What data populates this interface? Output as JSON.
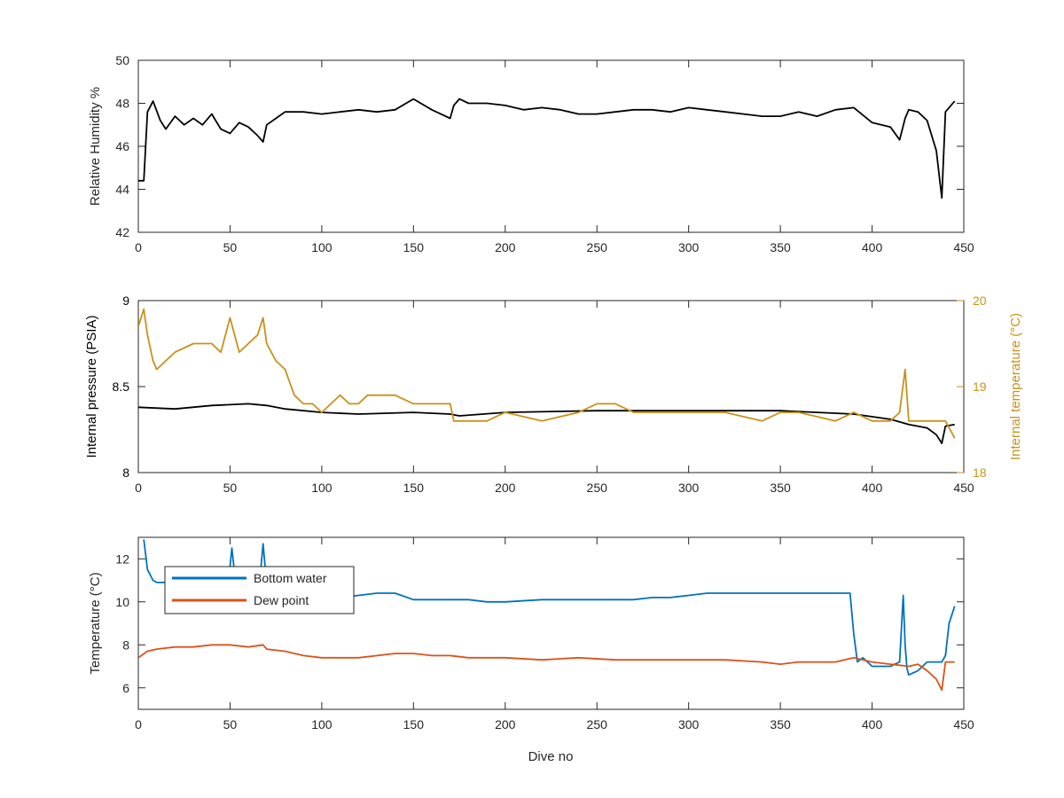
{
  "colors": {
    "axis": "#262626",
    "black_series": "#000000",
    "blue": "#0072BD",
    "orange": "#D95319",
    "gold": "#C8921A"
  },
  "chart_data": [
    {
      "type": "line",
      "ylabel": "Relative Humidity %",
      "xlabel": "",
      "xlim": [
        0,
        450
      ],
      "ylim": [
        42,
        50
      ],
      "xticks": [
        "0",
        "50",
        "100",
        "150",
        "200",
        "250",
        "300",
        "350",
        "400",
        "450"
      ],
      "yticks": [
        "42",
        "44",
        "46",
        "48",
        "50"
      ],
      "grid": false,
      "series": [
        {
          "color": "#000000",
          "x": [
            0,
            3,
            5,
            8,
            12,
            15,
            20,
            25,
            30,
            35,
            40,
            45,
            50,
            55,
            60,
            65,
            68,
            70,
            75,
            80,
            90,
            100,
            110,
            120,
            130,
            140,
            150,
            160,
            170,
            172,
            175,
            180,
            190,
            200,
            210,
            220,
            230,
            240,
            250,
            260,
            270,
            280,
            290,
            300,
            310,
            320,
            330,
            340,
            350,
            360,
            370,
            380,
            390,
            400,
            410,
            415,
            418,
            420,
            425,
            430,
            435,
            438,
            440,
            445
          ],
          "y": [
            44.4,
            44.4,
            47.6,
            48.1,
            47.2,
            46.8,
            47.4,
            47.0,
            47.3,
            47.0,
            47.5,
            46.8,
            46.6,
            47.1,
            46.9,
            46.5,
            46.2,
            47.0,
            47.3,
            47.6,
            47.6,
            47.5,
            47.6,
            47.7,
            47.6,
            47.7,
            48.2,
            47.7,
            47.3,
            47.9,
            48.2,
            48.0,
            48.0,
            47.9,
            47.7,
            47.8,
            47.7,
            47.5,
            47.5,
            47.6,
            47.7,
            47.7,
            47.6,
            47.8,
            47.7,
            47.6,
            47.5,
            47.4,
            47.4,
            47.6,
            47.4,
            47.7,
            47.8,
            47.1,
            46.9,
            46.3,
            47.3,
            47.7,
            47.6,
            47.2,
            45.8,
            43.6,
            47.6,
            48.1
          ]
        }
      ]
    },
    {
      "type": "line",
      "ylabel": "Internal pressure (PSIA)",
      "y2label": "Internal temperature (°C)",
      "xlabel": "",
      "xlim": [
        0,
        450
      ],
      "ylim": [
        8,
        9
      ],
      "y2lim": [
        18,
        20
      ],
      "xticks": [
        "0",
        "50",
        "100",
        "150",
        "200",
        "250",
        "300",
        "350",
        "400",
        "450"
      ],
      "yticks": [
        "8",
        "8.5",
        "9"
      ],
      "y2ticks": [
        "18",
        "19",
        "20"
      ],
      "grid": false,
      "series": [
        {
          "axis": "left",
          "color": "#000000",
          "x": [
            0,
            20,
            40,
            60,
            70,
            80,
            100,
            120,
            150,
            170,
            175,
            200,
            250,
            300,
            350,
            390,
            410,
            420,
            430,
            435,
            438,
            440,
            445
          ],
          "y": [
            8.38,
            8.37,
            8.39,
            8.4,
            8.39,
            8.37,
            8.35,
            8.34,
            8.35,
            8.34,
            8.33,
            8.35,
            8.36,
            8.36,
            8.36,
            8.34,
            8.31,
            8.28,
            8.26,
            8.22,
            8.17,
            8.27,
            8.28
          ]
        },
        {
          "axis": "right",
          "color": "#C8921A",
          "x": [
            0,
            3,
            5,
            8,
            10,
            15,
            20,
            30,
            40,
            45,
            50,
            55,
            60,
            65,
            68,
            70,
            75,
            80,
            85,
            90,
            95,
            100,
            105,
            110,
            115,
            120,
            125,
            130,
            140,
            150,
            160,
            170,
            172,
            175,
            180,
            190,
            200,
            220,
            240,
            250,
            260,
            270,
            280,
            290,
            300,
            320,
            340,
            350,
            360,
            380,
            390,
            400,
            410,
            415,
            418,
            420,
            425,
            430,
            440,
            445
          ],
          "y": [
            19.7,
            19.9,
            19.6,
            19.3,
            19.2,
            19.3,
            19.4,
            19.5,
            19.5,
            19.4,
            19.8,
            19.4,
            19.5,
            19.6,
            19.8,
            19.5,
            19.3,
            19.2,
            18.9,
            18.8,
            18.8,
            18.7,
            18.8,
            18.9,
            18.8,
            18.8,
            18.9,
            18.9,
            18.9,
            18.8,
            18.8,
            18.8,
            18.6,
            18.6,
            18.6,
            18.6,
            18.7,
            18.6,
            18.7,
            18.8,
            18.8,
            18.7,
            18.7,
            18.7,
            18.7,
            18.7,
            18.6,
            18.7,
            18.7,
            18.6,
            18.7,
            18.6,
            18.6,
            18.7,
            19.2,
            18.6,
            18.6,
            18.6,
            18.6,
            18.4
          ]
        }
      ]
    },
    {
      "type": "line",
      "ylabel": "Temperature (°C)",
      "xlabel": "Dive no",
      "xlim": [
        0,
        450
      ],
      "ylim": [
        5,
        13
      ],
      "xticks": [
        "0",
        "50",
        "100",
        "150",
        "200",
        "250",
        "300",
        "350",
        "400",
        "450"
      ],
      "yticks": [
        "6",
        "8",
        "10",
        "12"
      ],
      "grid": false,
      "legend": "top-left",
      "series": [
        {
          "name": "Bottom water",
          "color": "#0072BD",
          "x": [
            3,
            5,
            8,
            10,
            15,
            20,
            30,
            40,
            49,
            51,
            53,
            55,
            60,
            66,
            68,
            70,
            75,
            80,
            90,
            100,
            110,
            120,
            130,
            140,
            150,
            160,
            170,
            180,
            190,
            200,
            220,
            240,
            250,
            260,
            270,
            280,
            290,
            300,
            310,
            320,
            330,
            340,
            350,
            360,
            370,
            380,
            388,
            390,
            392,
            395,
            400,
            410,
            415,
            417,
            418,
            419,
            420,
            425,
            430,
            438,
            440,
            442,
            445
          ],
          "y": [
            12.9,
            11.5,
            11.0,
            10.9,
            10.9,
            10.9,
            10.9,
            10.8,
            10.8,
            12.5,
            10.9,
            10.8,
            10.8,
            10.8,
            12.7,
            10.8,
            10.8,
            10.5,
            10.2,
            10.2,
            10.2,
            10.3,
            10.4,
            10.4,
            10.1,
            10.1,
            10.1,
            10.1,
            10.0,
            10.0,
            10.1,
            10.1,
            10.1,
            10.1,
            10.1,
            10.2,
            10.2,
            10.3,
            10.4,
            10.4,
            10.4,
            10.4,
            10.4,
            10.4,
            10.4,
            10.4,
            10.4,
            8.5,
            7.2,
            7.4,
            7.0,
            7.0,
            7.2,
            10.3,
            8.0,
            6.9,
            6.6,
            6.8,
            7.2,
            7.2,
            7.5,
            9.0,
            9.8
          ]
        },
        {
          "name": "Dew point",
          "color": "#D95319",
          "x": [
            0,
            5,
            10,
            20,
            30,
            40,
            50,
            60,
            68,
            70,
            80,
            90,
            100,
            110,
            120,
            140,
            150,
            160,
            170,
            180,
            200,
            220,
            240,
            260,
            280,
            300,
            320,
            340,
            350,
            360,
            380,
            390,
            400,
            410,
            420,
            425,
            430,
            435,
            438,
            440,
            445
          ],
          "y": [
            7.4,
            7.7,
            7.8,
            7.9,
            7.9,
            8.0,
            8.0,
            7.9,
            8.0,
            7.8,
            7.7,
            7.5,
            7.4,
            7.4,
            7.4,
            7.6,
            7.6,
            7.5,
            7.5,
            7.4,
            7.4,
            7.3,
            7.4,
            7.3,
            7.3,
            7.3,
            7.3,
            7.2,
            7.1,
            7.2,
            7.2,
            7.4,
            7.2,
            7.1,
            7.0,
            7.1,
            6.8,
            6.4,
            5.9,
            7.2,
            7.2
          ]
        }
      ]
    }
  ]
}
